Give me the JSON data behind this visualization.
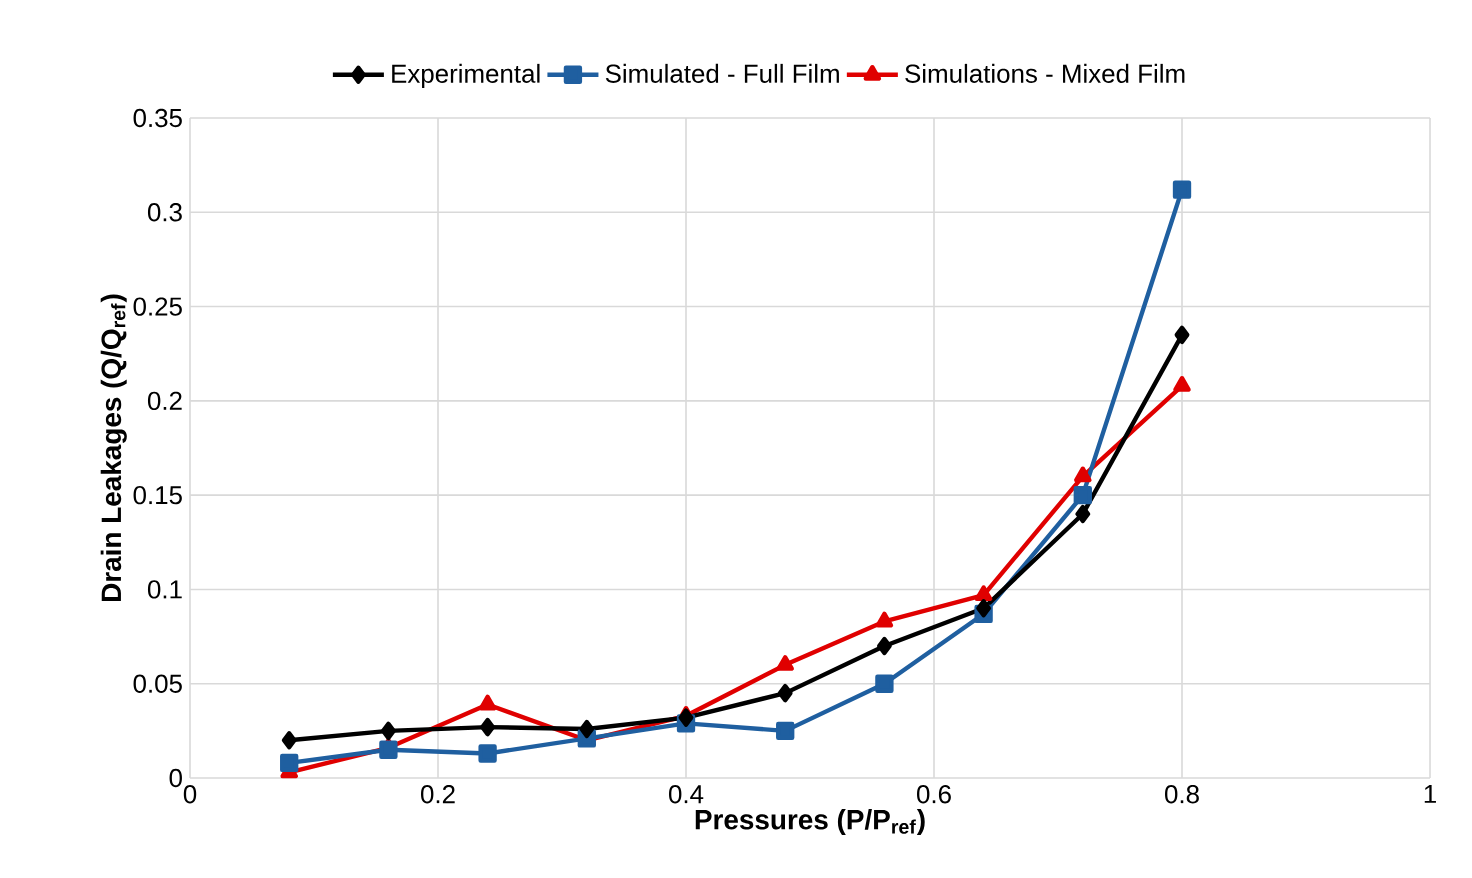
{
  "chart_data": {
    "type": "line",
    "xlabel": "Pressures (P/P$_{ref}$)",
    "ylabel": "Drain Leakages (Q/Q$_{ref}$)",
    "x": [
      0.08,
      0.16,
      0.24,
      0.32,
      0.4,
      0.48,
      0.56,
      0.64,
      0.72,
      0.8
    ],
    "series": [
      {
        "name": "Experimental",
        "color": "#000000",
        "marker": "diamond",
        "values": [
          0.02,
          0.025,
          0.027,
          0.026,
          0.032,
          0.045,
          0.07,
          0.09,
          0.14,
          0.235
        ]
      },
      {
        "name": "Simulated - Full Film",
        "color": "#1f5fa0",
        "marker": "square",
        "values": [
          0.008,
          0.015,
          0.013,
          0.021,
          0.029,
          0.025,
          0.05,
          0.087,
          0.15,
          0.312
        ]
      },
      {
        "name": "Simulations - Mixed Film",
        "color": "#e00000",
        "marker": "triangle",
        "values": [
          0.003,
          0.016,
          0.039,
          0.02,
          0.033,
          0.06,
          0.083,
          0.097,
          0.16,
          0.208
        ]
      }
    ],
    "xlim": [
      0,
      1
    ],
    "ylim": [
      0,
      0.35
    ],
    "xticks": [
      0,
      0.2,
      0.4,
      0.6,
      0.8,
      1
    ],
    "yticks": [
      0,
      0.05,
      0.1,
      0.15,
      0.2,
      0.25,
      0.3,
      0.35
    ],
    "grid": true,
    "legend": "top",
    "line_style": "solid"
  }
}
